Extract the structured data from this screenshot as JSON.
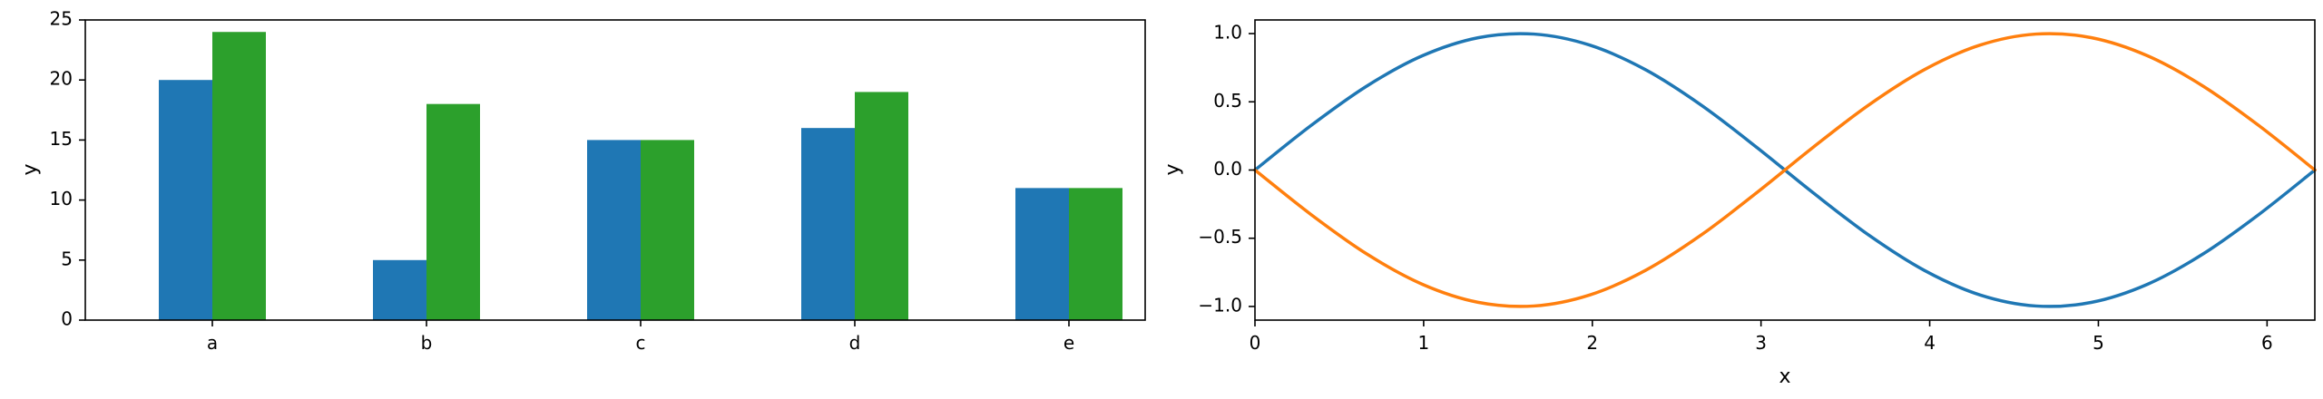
{
  "colors": {
    "blue": "#1f77b4",
    "green": "#2ca02c",
    "orange": "#ff7f0e"
  },
  "chart_data": [
    {
      "type": "bar",
      "categories": [
        "a",
        "b",
        "c",
        "d",
        "e"
      ],
      "series": [
        {
          "values": [
            20,
            5,
            15,
            16,
            11
          ],
          "color": "#1f77b4"
        },
        {
          "values": [
            24,
            18,
            15,
            19,
            11
          ],
          "color": "#2ca02c"
        }
      ],
      "title": "",
      "xlabel": "",
      "ylabel": "y",
      "ylim": [
        0,
        25
      ],
      "yticks": [
        0,
        5,
        10,
        15,
        20,
        25
      ],
      "grid": false
    },
    {
      "type": "line",
      "x": [
        0,
        0.3307,
        0.6614,
        0.9921,
        1.3228,
        1.6535,
        1.9842,
        2.3149,
        2.6456,
        2.9762,
        3.3069,
        3.6376,
        3.9683,
        4.299,
        4.6297,
        4.9604,
        5.2911,
        5.6218,
        5.9525,
        6.2832
      ],
      "series": [
        {
          "values": [
            0,
            0.3247,
            0.6142,
            0.8372,
            0.9694,
            0.9966,
            0.9158,
            0.7357,
            0.4759,
            0.1646,
            -0.1646,
            -0.4759,
            -0.7357,
            -0.9158,
            -0.9966,
            -0.9694,
            -0.8372,
            -0.6142,
            -0.3247,
            0
          ],
          "color": "#1f77b4"
        },
        {
          "values": [
            0,
            -0.3247,
            -0.6142,
            -0.8372,
            -0.9694,
            -0.9966,
            -0.9158,
            -0.7357,
            -0.4759,
            -0.1646,
            0.1646,
            0.4759,
            0.7357,
            0.9158,
            0.9966,
            0.9694,
            0.8372,
            0.6142,
            0.3247,
            0
          ],
          "color": "#ff7f0e"
        }
      ],
      "title": "",
      "xlabel": "x",
      "ylabel": "y",
      "xlim": [
        0,
        6.2832
      ],
      "ylim": [
        -1.1,
        1.1
      ],
      "xticks": [
        0,
        1,
        2,
        3,
        4,
        5,
        6
      ],
      "yticks": [
        -1.0,
        -0.5,
        0.0,
        0.5,
        1.0
      ],
      "ytick_labels": [
        "−1.0",
        "−0.5",
        "0.0",
        "0.5",
        "1.0"
      ],
      "grid": false
    }
  ]
}
